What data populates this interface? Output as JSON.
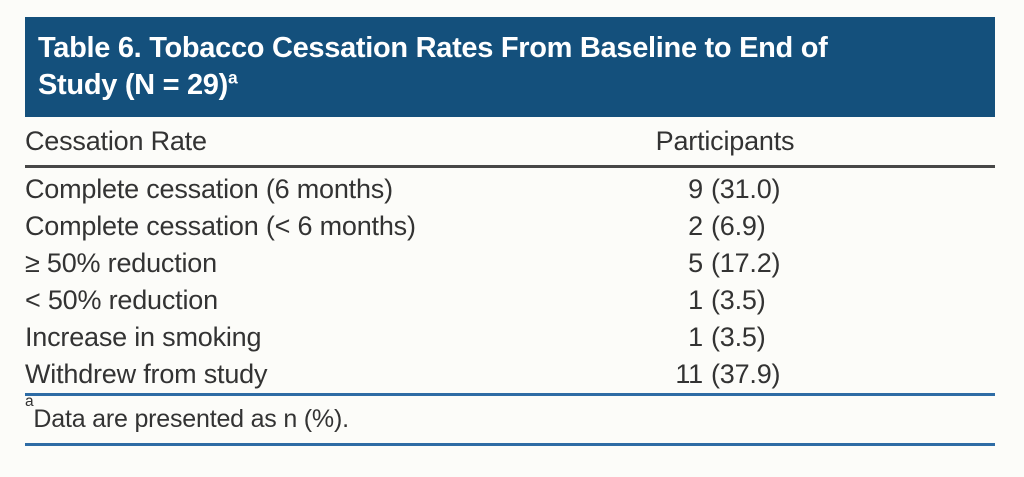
{
  "header": {
    "title_lines": [
      "Table 6. Tobacco Cessation Rates From Baseline to End of",
      "Study (N = 29)"
    ],
    "title_superscript": "a"
  },
  "table": {
    "columns": [
      "Cessation Rate",
      "Participants"
    ],
    "rows": [
      {
        "label": "Complete cessation (6 months)",
        "n": "9",
        "pct": "(31.0)"
      },
      {
        "label": "Complete cessation (< 6 months)",
        "n": "2",
        "pct": "(6.9)"
      },
      {
        "label": "≥ 50% reduction",
        "n": "5",
        "pct": "(17.2)"
      },
      {
        "label": "< 50% reduction",
        "n": "1",
        "pct": "(3.5)"
      },
      {
        "label": "Increase in smoking",
        "n": "1",
        "pct": "(3.5)"
      },
      {
        "label": "Withdrew from study",
        "n": "11",
        "pct": "(37.9)"
      }
    ]
  },
  "footnote": {
    "marker": "a",
    "text": "Data are presented as n (%)."
  },
  "colors": {
    "banner_blue": "#14507c",
    "rule_blue": "#2e6ca5",
    "rule_dark": "#474747",
    "text": "#333333"
  }
}
